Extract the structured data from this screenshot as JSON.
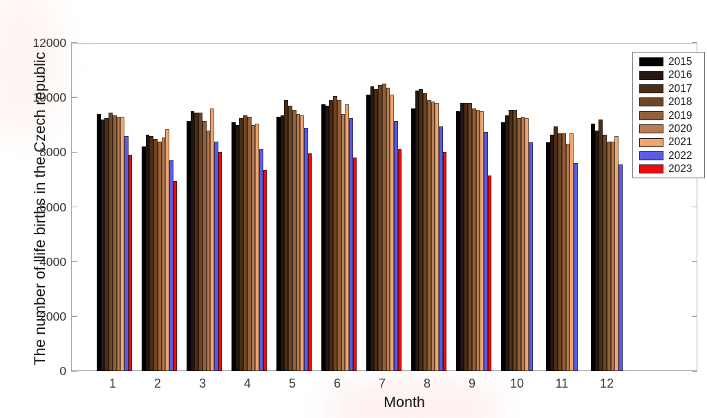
{
  "chart_data": {
    "type": "bar",
    "title": "",
    "xlabel": "Month",
    "ylabel": "The number of llife births in the Czech republic",
    "categories": [
      "1",
      "2",
      "3",
      "4",
      "5",
      "6",
      "7",
      "8",
      "9",
      "10",
      "11",
      "12"
    ],
    "yticks": [
      0,
      2000,
      4000,
      6000,
      8000,
      10000,
      12000
    ],
    "ylim": [
      0,
      12000
    ],
    "grid": false,
    "legend_position": "northeast",
    "series": [
      {
        "name": "2015",
        "color": "#000000",
        "values": [
          9400,
          8200,
          9150,
          9100,
          9300,
          9750,
          10100,
          9600,
          9500,
          9100,
          8350,
          9050
        ]
      },
      {
        "name": "2016",
        "color": "#261812",
        "values": [
          9200,
          8650,
          9500,
          9000,
          9350,
          9700,
          10400,
          10250,
          9800,
          9350,
          8650,
          8800
        ]
      },
      {
        "name": "2017",
        "color": "#4b2d18",
        "values": [
          9250,
          8600,
          9450,
          9250,
          9900,
          9900,
          10300,
          10300,
          9800,
          9550,
          8950,
          9200
        ]
      },
      {
        "name": "2018",
        "color": "#6f4623",
        "values": [
          9450,
          8500,
          9450,
          9350,
          9700,
          10050,
          10450,
          10150,
          9800,
          9550,
          8700,
          8650
        ]
      },
      {
        "name": "2019",
        "color": "#93613a",
        "values": [
          9350,
          8400,
          9150,
          9300,
          9550,
          9900,
          10500,
          9900,
          9600,
          9250,
          8700,
          8400
        ]
      },
      {
        "name": "2020",
        "color": "#b77c50",
        "values": [
          9300,
          8550,
          8800,
          9000,
          9400,
          9400,
          10350,
          9850,
          9550,
          9300,
          8300,
          8400
        ]
      },
      {
        "name": "2021",
        "color": "#eda571",
        "values": [
          9300,
          8850,
          9600,
          9050,
          9350,
          9750,
          10100,
          9800,
          9500,
          9250,
          8700,
          8600
        ]
      },
      {
        "name": "2022",
        "color": "#5a5de0",
        "values": [
          8600,
          7700,
          8400,
          8100,
          8900,
          9250,
          9150,
          8950,
          8750,
          8350,
          7600,
          7550
        ]
      },
      {
        "name": "2023",
        "color": "#ee0b0b",
        "values": [
          7900,
          6950,
          8000,
          7350,
          7950,
          7800,
          8100,
          8000,
          7150,
          null,
          null,
          null
        ]
      }
    ]
  },
  "colors": {
    "axis_box": "#a9a9a9",
    "tick_label": "#3a3a3a",
    "axis_label": "#141414",
    "legend_border": "#707070",
    "background": "#ffffff",
    "blue_2022": "#5a5de0",
    "red_2023": "#ee0b0b"
  }
}
